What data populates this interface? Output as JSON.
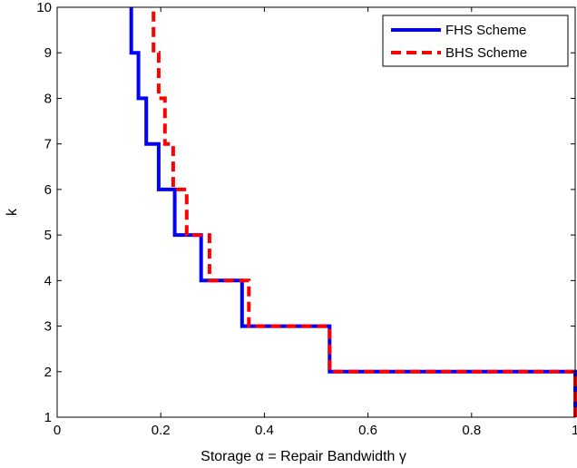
{
  "chart_data": {
    "type": "line",
    "xlabel": "Storage α = Repair Bandwidth γ",
    "ylabel": "k",
    "xlim": [
      0,
      1
    ],
    "ylim": [
      1,
      10
    ],
    "x_ticks": [
      "0",
      "0.2",
      "0.4",
      "0.6",
      "0.8",
      "1"
    ],
    "y_ticks": [
      "1",
      "2",
      "3",
      "4",
      "5",
      "6",
      "7",
      "8",
      "9",
      "10"
    ],
    "grid": false,
    "legend_position": "top-right",
    "series": [
      {
        "name": "FHS Scheme",
        "color": "#0000ff",
        "line_style": "solid",
        "step_points": [
          {
            "x": 1.0,
            "y": 1
          },
          {
            "x": 1.0,
            "y": 2
          },
          {
            "x": 0.526,
            "y": 2
          },
          {
            "x": 0.526,
            "y": 3
          },
          {
            "x": 0.357,
            "y": 3
          },
          {
            "x": 0.357,
            "y": 4
          },
          {
            "x": 0.278,
            "y": 4
          },
          {
            "x": 0.278,
            "y": 5
          },
          {
            "x": 0.227,
            "y": 5
          },
          {
            "x": 0.227,
            "y": 6
          },
          {
            "x": 0.196,
            "y": 6
          },
          {
            "x": 0.196,
            "y": 7
          },
          {
            "x": 0.172,
            "y": 7
          },
          {
            "x": 0.172,
            "y": 8
          },
          {
            "x": 0.157,
            "y": 8
          },
          {
            "x": 0.157,
            "y": 9
          },
          {
            "x": 0.143,
            "y": 9
          },
          {
            "x": 0.143,
            "y": 10
          }
        ]
      },
      {
        "name": "BHS Scheme",
        "color": "#ff0000",
        "line_style": "dashed",
        "step_points": [
          {
            "x": 1.0,
            "y": 1
          },
          {
            "x": 1.0,
            "y": 2
          },
          {
            "x": 0.526,
            "y": 2
          },
          {
            "x": 0.526,
            "y": 3
          },
          {
            "x": 0.37,
            "y": 3
          },
          {
            "x": 0.37,
            "y": 4
          },
          {
            "x": 0.294,
            "y": 4
          },
          {
            "x": 0.294,
            "y": 5
          },
          {
            "x": 0.25,
            "y": 5
          },
          {
            "x": 0.25,
            "y": 6
          },
          {
            "x": 0.224,
            "y": 6
          },
          {
            "x": 0.224,
            "y": 7
          },
          {
            "x": 0.208,
            "y": 7
          },
          {
            "x": 0.208,
            "y": 8
          },
          {
            "x": 0.196,
            "y": 8
          },
          {
            "x": 0.196,
            "y": 9
          },
          {
            "x": 0.186,
            "y": 9
          },
          {
            "x": 0.186,
            "y": 10
          }
        ]
      }
    ]
  }
}
